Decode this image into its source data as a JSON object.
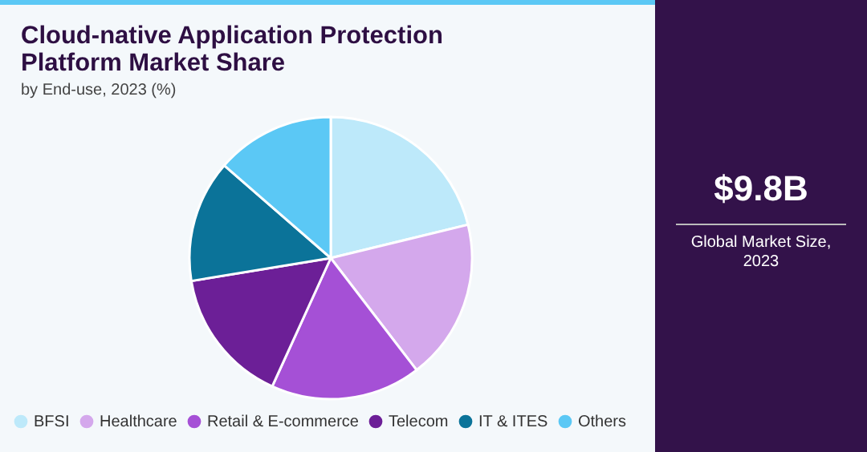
{
  "chart_data": {
    "type": "pie",
    "title": "Cloud-native Application Protection Platform Market Share",
    "subtitle": "by End-use, 2023 (%)",
    "categories": [
      "BFSI",
      "Healthcare",
      "Retail & E-commerce",
      "Telecom",
      "IT & ITES",
      "Others"
    ],
    "values": [
      21.2,
      18.4,
      17.2,
      15.6,
      14.0,
      13.6
    ],
    "colors": [
      "#bde9fa",
      "#d4a8ec",
      "#a550d6",
      "#6c1f97",
      "#0b7399",
      "#5bc8f5"
    ],
    "legend": "bottom",
    "annotations": [
      "$9.8B",
      "Global Market Size, 2023"
    ]
  }
}
